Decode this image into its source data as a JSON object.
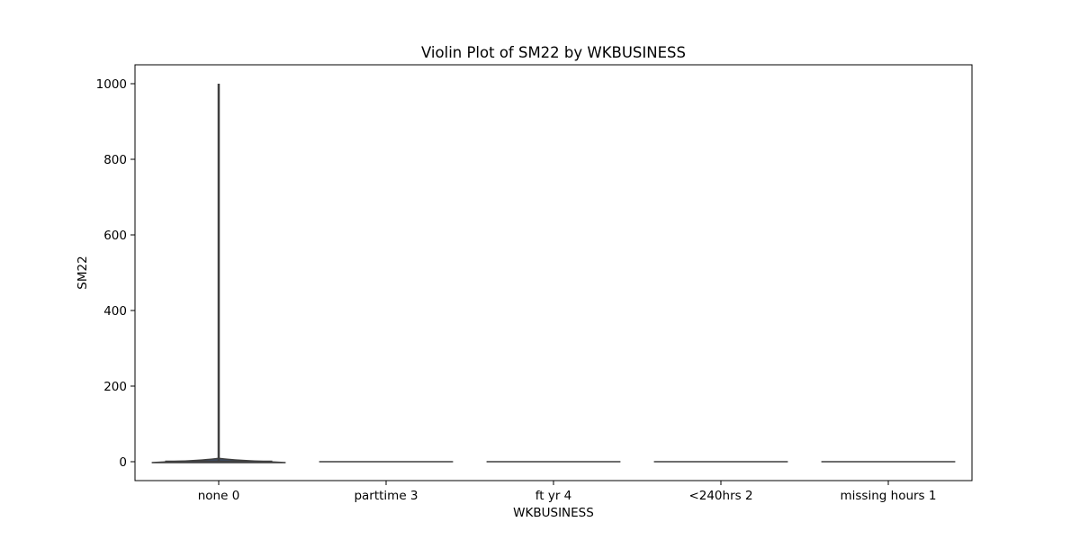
{
  "chart_data": {
    "type": "violin",
    "title": "Violin Plot of SM22 by WKBUSINESS",
    "xlabel": "WKBUSINESS",
    "ylabel": "SM22",
    "categories": [
      "none 0",
      "parttime 3",
      "ft yr 4",
      "<240hrs 2",
      "missing hours 1"
    ],
    "yticks": [
      0,
      200,
      400,
      600,
      800,
      1000
    ],
    "ylim": [
      -50,
      1050
    ],
    "grid": false,
    "legend": "none",
    "series": [
      {
        "category": "none 0",
        "min": 0,
        "max": 1000,
        "median": 0,
        "q1": 0,
        "q3": 1
      },
      {
        "category": "parttime 3",
        "min": 0,
        "max": 0,
        "median": 0,
        "q1": 0,
        "q3": 0
      },
      {
        "category": "ft yr 4",
        "min": 0,
        "max": 0,
        "median": 0,
        "q1": 0,
        "q3": 0
      },
      {
        "category": "<240hrs 2",
        "min": 0,
        "max": 0,
        "median": 0,
        "q1": 0,
        "q3": 0
      },
      {
        "category": "missing hours 1",
        "min": 0,
        "max": 0,
        "median": 0,
        "q1": 0,
        "q3": 0
      }
    ],
    "colors": {
      "violin_fill": "#3d4d66",
      "line": "#3f3f3f",
      "axis": "#000000"
    }
  }
}
